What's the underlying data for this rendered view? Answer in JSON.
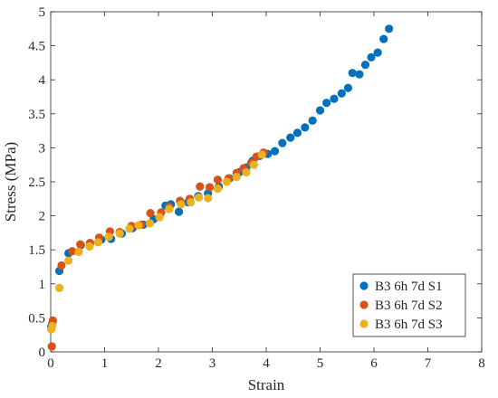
{
  "chart_data": {
    "type": "scatter",
    "title": "",
    "xlabel": "Strain",
    "ylabel": "Stress (MPa)",
    "xlim": [
      0,
      8
    ],
    "ylim": [
      0,
      5
    ],
    "xticks": [
      "0",
      "1",
      "2",
      "3",
      "4",
      "5",
      "6",
      "7",
      "8"
    ],
    "yticks": [
      "0",
      "0.5",
      "1",
      "1.5",
      "2",
      "2.5",
      "3",
      "3.5",
      "4",
      "4.5",
      "5"
    ],
    "grid": false,
    "legend_position": "bottom-right",
    "series": [
      {
        "name": "B3 6h 7d S1",
        "color": "#0072BD",
        "x": [
          0.01,
          0.03,
          0.16,
          0.33,
          0.56,
          0.73,
          0.94,
          1.12,
          1.32,
          1.52,
          1.72,
          1.91,
          2.13,
          2.23,
          2.38,
          2.55,
          2.74,
          2.92,
          3.12,
          3.32,
          3.5,
          3.63,
          3.75,
          3.88,
          4.03,
          4.16,
          4.3,
          4.45,
          4.58,
          4.72,
          4.86,
          5.0,
          5.12,
          5.26,
          5.4,
          5.52,
          5.6,
          5.73,
          5.84,
          5.95,
          6.07,
          6.18,
          6.28
        ],
        "y": [
          0.37,
          0.42,
          1.19,
          1.45,
          1.57,
          1.6,
          1.65,
          1.66,
          1.74,
          1.82,
          1.87,
          1.95,
          2.15,
          2.17,
          2.06,
          2.2,
          2.29,
          2.33,
          2.43,
          2.55,
          2.64,
          2.71,
          2.81,
          2.88,
          2.91,
          2.95,
          3.07,
          3.15,
          3.22,
          3.3,
          3.4,
          3.55,
          3.66,
          3.72,
          3.8,
          3.88,
          4.1,
          4.08,
          4.22,
          4.33,
          4.4,
          4.6,
          4.75
        ]
      },
      {
        "name": "B3 6h 7d S2",
        "color": "#D95319",
        "x": [
          0.02,
          0.04,
          0.2,
          0.4,
          0.55,
          0.73,
          0.9,
          1.1,
          1.28,
          1.5,
          1.68,
          1.85,
          2.05,
          2.2,
          2.4,
          2.58,
          2.77,
          2.95,
          3.1,
          3.3,
          3.45,
          3.58,
          3.72,
          3.82,
          3.95
        ],
        "y": [
          0.08,
          0.46,
          1.27,
          1.48,
          1.58,
          1.6,
          1.68,
          1.77,
          1.76,
          1.85,
          1.87,
          2.04,
          2.05,
          2.13,
          2.22,
          2.25,
          2.43,
          2.42,
          2.53,
          2.55,
          2.63,
          2.7,
          2.78,
          2.87,
          2.93
        ]
      },
      {
        "name": "B3 6h 7d S3",
        "color": "#EDB120",
        "x": [
          0.01,
          0.03,
          0.16,
          0.33,
          0.52,
          0.72,
          0.88,
          1.08,
          1.28,
          1.46,
          1.63,
          1.84,
          2.02,
          2.2,
          2.42,
          2.6,
          2.75,
          2.92,
          3.1,
          3.27,
          3.45,
          3.63,
          3.77,
          3.92
        ],
        "y": [
          0.33,
          0.38,
          0.94,
          1.34,
          1.47,
          1.55,
          1.61,
          1.69,
          1.74,
          1.81,
          1.86,
          1.89,
          1.98,
          2.1,
          2.17,
          2.2,
          2.27,
          2.26,
          2.4,
          2.5,
          2.57,
          2.64,
          2.75,
          2.9
        ]
      }
    ]
  }
}
